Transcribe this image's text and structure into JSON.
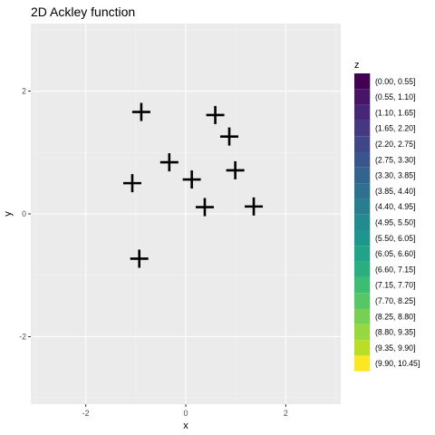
{
  "chart_data": {
    "type": "scatter",
    "title": "2D Ackley function",
    "xlabel": "x",
    "ylabel": "y",
    "xlim": [
      -3.1,
      3.1
    ],
    "ylim": [
      -3.1,
      3.1
    ],
    "x_ticks": [
      -2,
      0,
      2
    ],
    "y_ticks": [
      -2,
      0,
      2
    ],
    "x_tick_labels": [
      "-2",
      "0",
      "2"
    ],
    "y_tick_labels": [
      "-2",
      "0",
      "2"
    ],
    "grid": true,
    "marker": "cross",
    "marker_color": "#000000",
    "panel_background": "#ebebeb",
    "points": [
      {
        "x": -0.89,
        "y": 1.66
      },
      {
        "x": 0.59,
        "y": 1.61
      },
      {
        "x": 0.87,
        "y": 1.26
      },
      {
        "x": -0.33,
        "y": 0.84
      },
      {
        "x": 0.99,
        "y": 0.71
      },
      {
        "x": 0.12,
        "y": 0.56
      },
      {
        "x": -1.07,
        "y": 0.5
      },
      {
        "x": 0.38,
        "y": 0.11
      },
      {
        "x": 1.36,
        "y": 0.12
      },
      {
        "x": -0.93,
        "y": -0.73
      }
    ],
    "legend": {
      "title": "z",
      "position": "right",
      "entries": [
        {
          "label": "(0.00, 0.55]",
          "color": "#440154"
        },
        {
          "label": "(0.55, 1.10]",
          "color": "#481467"
        },
        {
          "label": "(1.10, 1.65]",
          "color": "#482677"
        },
        {
          "label": "(1.65, 2.20]",
          "color": "#453781"
        },
        {
          "label": "(2.20, 2.75]",
          "color": "#3f4788"
        },
        {
          "label": "(2.75, 3.30]",
          "color": "#39558c"
        },
        {
          "label": "(3.30, 3.85]",
          "color": "#32648e"
        },
        {
          "label": "(3.85, 4.40]",
          "color": "#2d718e"
        },
        {
          "label": "(4.40, 4.95]",
          "color": "#287d8e"
        },
        {
          "label": "(4.95, 5.50]",
          "color": "#238a8d"
        },
        {
          "label": "(5.50, 6.05]",
          "color": "#1f968b"
        },
        {
          "label": "(6.05, 6.60]",
          "color": "#20a386"
        },
        {
          "label": "(6.60, 7.15]",
          "color": "#29af7f"
        },
        {
          "label": "(7.15, 7.70]",
          "color": "#3dbc74"
        },
        {
          "label": "(7.70, 8.25]",
          "color": "#56c667"
        },
        {
          "label": "(8.25, 8.80]",
          "color": "#75d054"
        },
        {
          "label": "(8.80, 9.35]",
          "color": "#95d840"
        },
        {
          "label": "(9.35, 9.90]",
          "color": "#bade28"
        },
        {
          "label": "(9.90, 10.45]",
          "color": "#fde725"
        }
      ]
    }
  }
}
